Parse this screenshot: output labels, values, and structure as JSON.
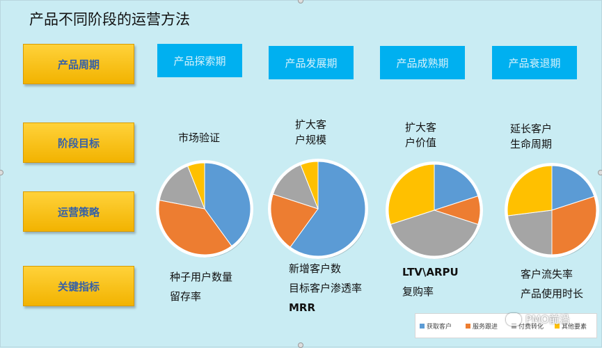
{
  "title": "产品不同阶段的运营方法",
  "row_labels": [
    "产品周期",
    "阶段目标",
    "运营策略",
    "关键指标"
  ],
  "phases": [
    "产品探索期",
    "产品发展期",
    "产品成熟期",
    "产品衰退期"
  ],
  "goals": [
    "市场验证",
    "扩大客\n户规模",
    "扩大客\n户价值",
    "延长客户\n生命周期"
  ],
  "kpis": [
    [
      "种子用户数量",
      "留存率"
    ],
    [
      "新增客户数",
      "目标客户渗透率",
      "MRR"
    ],
    [
      "LTV\\ARPU",
      "复购率"
    ],
    [
      "客户流失率",
      "产品使用时长"
    ]
  ],
  "colors": {
    "acquire": "#5b9bd5",
    "service": "#ed7d31",
    "paid": "#a5a5a5",
    "other": "#ffc000",
    "phase_box": "#00b0f0",
    "label_box": "#ffc000"
  },
  "chart_data": [
    {
      "type": "pie",
      "title": "产品探索期",
      "labels": [
        "获取客户",
        "服务跟进",
        "付费转化",
        "其他要素"
      ],
      "values": [
        40,
        38,
        16,
        6
      ]
    },
    {
      "type": "pie",
      "title": "产品发展期",
      "labels": [
        "获取客户",
        "服务跟进",
        "付费转化",
        "其他要素"
      ],
      "values": [
        60,
        20,
        14,
        6
      ]
    },
    {
      "type": "pie",
      "title": "产品成熟期",
      "labels": [
        "获取客户",
        "服务跟进",
        "付费转化",
        "其他要素"
      ],
      "values": [
        20,
        10,
        40,
        30
      ]
    },
    {
      "type": "pie",
      "title": "产品衰退期",
      "labels": [
        "获取客户",
        "服务跟进",
        "付费转化",
        "其他要素"
      ],
      "values": [
        20,
        30,
        23,
        27
      ]
    }
  ],
  "legend": [
    "获取客户",
    "服务跟进",
    "付费转化",
    "其他要素"
  ],
  "watermark": "PMO前沿"
}
